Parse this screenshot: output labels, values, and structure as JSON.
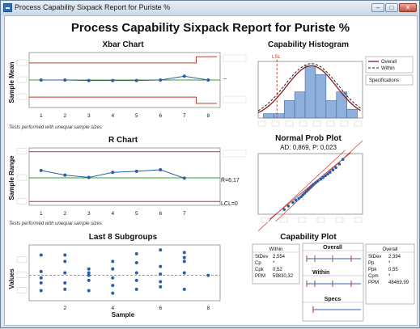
{
  "window": {
    "title": "Process Capability Sixpack Report for Puriste %",
    "buttons": {
      "minimize": "–",
      "maximize": "□",
      "close": "✕"
    }
  },
  "report": {
    "title": "Process Capability Sixpack Report for Puriste %"
  },
  "colors": {
    "control_limit": "#c0392b",
    "center_line": "#2ca02c",
    "data": "#2a5fa8",
    "bar_fill": "#8fb0da",
    "bar_stroke": "#3d6aa5"
  },
  "xbar": {
    "title": "Xbar Chart",
    "ylabel": "Sample Mean",
    "x_ticks": [
      "1",
      "2",
      "3",
      "4",
      "5",
      "6",
      "7",
      "8"
    ],
    "center_label": "–",
    "note": "Tests performed with unequal sample sizes",
    "chart_data": {
      "type": "line",
      "x": [
        1,
        2,
        3,
        4,
        5,
        6,
        7,
        8
      ],
      "values": [
        0.0,
        0.0,
        -0.02,
        -0.02,
        -0.02,
        0.0,
        0.14,
        0.0
      ],
      "center": 0.0,
      "ucl": [
        0.62,
        0.62,
        0.62,
        0.62,
        0.62,
        0.62,
        0.62,
        0.85
      ],
      "lcl": [
        -0.62,
        -0.62,
        -0.62,
        -0.62,
        -0.62,
        -0.62,
        -0.62,
        -0.85
      ],
      "ylim": [
        -1.0,
        1.0
      ]
    }
  },
  "rchart": {
    "title": "R Chart",
    "ylabel": "Sample Range",
    "x_ticks": [
      "1",
      "2",
      "3",
      "4",
      "5",
      "6",
      "7"
    ],
    "center_label": "R̄=6,17",
    "lcl_label": "LCL=0",
    "note": "Tests performed with unequal sample sizes",
    "chart_data": {
      "type": "line",
      "x": [
        1,
        2,
        3,
        4,
        5,
        6,
        7
      ],
      "values": [
        8.1,
        6.9,
        6.3,
        7.6,
        7.9,
        8.3,
        6.1
      ],
      "center": 6.17,
      "ucl": 13.0,
      "lcl": 0,
      "ylim": [
        -1,
        14
      ]
    }
  },
  "subgroups": {
    "title": "Last 8 Subgroups",
    "ylabel": "Values",
    "xlabel": "Sample",
    "x_ticks": [
      "2",
      "4",
      "6",
      "8"
    ],
    "chart_data": {
      "type": "scatter",
      "points": [
        [
          1,
          0.15
        ],
        [
          1,
          0.8
        ],
        [
          1,
          -0.6
        ],
        [
          1,
          -0.3
        ],
        [
          1,
          -0.1
        ],
        [
          2,
          0.1
        ],
        [
          2,
          0.8
        ],
        [
          2,
          0.55
        ],
        [
          2,
          -0.3
        ],
        [
          2,
          -0.55
        ],
        [
          3,
          0.25
        ],
        [
          3,
          0.0
        ],
        [
          3,
          0.1
        ],
        [
          3,
          -0.2
        ],
        [
          3,
          -0.6
        ],
        [
          4,
          0.55
        ],
        [
          4,
          0.25
        ],
        [
          4,
          -0.1
        ],
        [
          4,
          -0.4
        ],
        [
          4,
          -0.7
        ],
        [
          5,
          0.85
        ],
        [
          5,
          0.5
        ],
        [
          5,
          0.1
        ],
        [
          5,
          -0.2
        ],
        [
          5,
          -0.55
        ],
        [
          6,
          1.0
        ],
        [
          6,
          0.35
        ],
        [
          6,
          0.05
        ],
        [
          6,
          -0.25
        ],
        [
          6,
          -0.45
        ],
        [
          7,
          0.9
        ],
        [
          7,
          0.7
        ],
        [
          7,
          0.55
        ],
        [
          7,
          0.1
        ],
        [
          7,
          -0.55
        ],
        [
          8,
          0.0
        ]
      ],
      "center": 0.0,
      "ylim": [
        -1.0,
        1.2
      ],
      "xlim": [
        0.5,
        8.5
      ]
    }
  },
  "histogram": {
    "title": "Capability Histogram",
    "lsl_label": "LSL",
    "legend": {
      "items": [
        "Overall",
        "Within"
      ],
      "specs_label": "Specifications"
    },
    "chart_data": {
      "type": "bar",
      "bins": [
        -2,
        -1,
        0,
        1,
        2,
        3,
        4,
        5,
        6
      ],
      "values": [
        1,
        1,
        4,
        6,
        12,
        10,
        4,
        6,
        2
      ],
      "lsl": -1.2,
      "ylim": [
        0,
        13
      ],
      "xlim": [
        -3,
        7
      ]
    }
  },
  "normplot": {
    "title": "Normal Prob Plot",
    "subtitle": "AD: 0,869, P: 0,023",
    "chart_data": {
      "type": "scatter",
      "x": [
        -3.5,
        -2.8,
        -2.0,
        -1.5,
        -1.0,
        -0.6,
        -0.3,
        0.0,
        0.3,
        0.6,
        0.9,
        1.2,
        1.5,
        1.9,
        2.3,
        2.8,
        3.2,
        3.6,
        4.0,
        4.4,
        4.9,
        5.4,
        6.0,
        6.6
      ],
      "y": [
        -2.2,
        -1.9,
        -1.6,
        -1.4,
        -1.25,
        -1.1,
        -0.95,
        -0.8,
        -0.65,
        -0.5,
        -0.35,
        -0.2,
        -0.05,
        0.1,
        0.25,
        0.4,
        0.55,
        0.7,
        0.85,
        1.0,
        1.2,
        1.4,
        1.7,
        2.1
      ],
      "xlim": [
        -8,
        10
      ],
      "ylim": [
        -2.6,
        2.6
      ]
    }
  },
  "capability": {
    "title": "Capability Plot",
    "within": {
      "header": "Within",
      "rows": [
        [
          "StDev",
          "2,554"
        ],
        [
          "Cp",
          "*"
        ],
        [
          "Cpk",
          "0,52"
        ],
        [
          "PPM",
          "59830,32"
        ]
      ]
    },
    "overall": {
      "header": "Overall",
      "rows": [
        [
          "StDev",
          "2,394"
        ],
        [
          "Pp",
          "*"
        ],
        [
          "Ppk",
          "0,55"
        ],
        [
          "Cpm",
          "*"
        ],
        [
          "PPM",
          "48469,99"
        ]
      ]
    },
    "panels": {
      "overall": "Overall",
      "within": "Within",
      "specs": "Specs"
    }
  }
}
